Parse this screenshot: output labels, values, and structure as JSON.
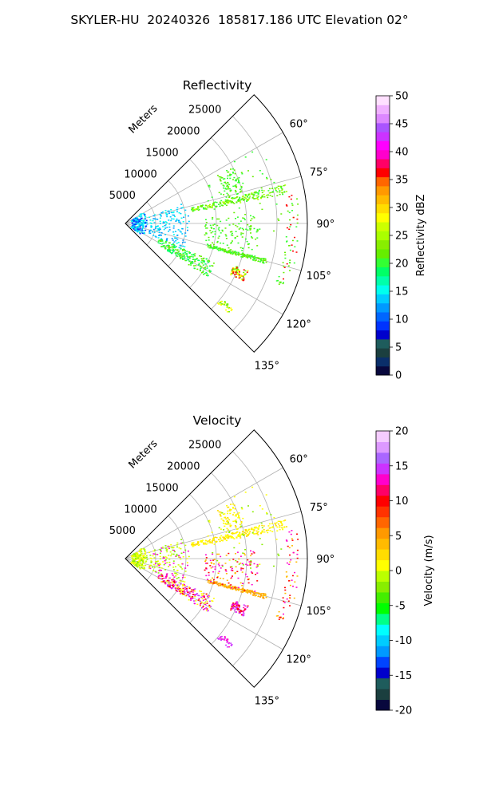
{
  "figure_title": "SKYLER-HU  20240326  185817.186 UTC Elevation 02°",
  "chart_data": [
    {
      "type": "polar-sector",
      "title": "Reflectivity",
      "r_label": "Meters",
      "r_ticks": [
        5000,
        10000,
        15000,
        20000,
        25000
      ],
      "r_lim": [
        0,
        30000
      ],
      "theta_range_deg": [
        45,
        135
      ],
      "theta_ticks": [
        "60°",
        "75°",
        "90°",
        "105°",
        "120°",
        "135°"
      ],
      "theta_tick_values": [
        60,
        75,
        90,
        105,
        120,
        135
      ],
      "grid": true,
      "colorbar": {
        "label": "Reflectivity dBZ",
        "min": 0,
        "max": 50,
        "ticks": [
          0,
          5,
          10,
          15,
          20,
          25,
          30,
          35,
          40,
          45,
          50
        ]
      }
    },
    {
      "type": "polar-sector",
      "title": "Velocity",
      "r_label": "Meters",
      "r_ticks": [
        5000,
        10000,
        15000,
        20000,
        25000
      ],
      "r_lim": [
        0,
        30000
      ],
      "theta_range_deg": [
        45,
        135
      ],
      "theta_ticks": [
        "60°",
        "75°",
        "90°",
        "105°",
        "120°",
        "135°"
      ],
      "theta_tick_values": [
        60,
        75,
        90,
        105,
        120,
        135
      ],
      "grid": true,
      "colorbar": {
        "label": "Velocity (m/s)",
        "min": -20,
        "max": 20,
        "ticks": [
          -20,
          -15,
          -10,
          -5,
          0,
          5,
          10,
          15,
          20
        ]
      }
    }
  ],
  "reflectivity_colors": [
    "#08083d",
    "#0a2f6a",
    "#1b3f3f",
    "#1e5c5c",
    "#0000cc",
    "#0033ff",
    "#0066ff",
    "#0099ff",
    "#00ccff",
    "#00ffee",
    "#00ffaa",
    "#00ff66",
    "#33ff33",
    "#66ee00",
    "#88ee00",
    "#aaff00",
    "#ccff00",
    "#ffff00",
    "#ffdd00",
    "#ffbb00",
    "#ff9900",
    "#ff6600",
    "#ff0000",
    "#ff0066",
    "#ff00cc",
    "#ff00ff",
    "#cc33ff",
    "#aa55ff",
    "#dd88ff",
    "#f0b0ff",
    "#ffe0ff"
  ],
  "velocity_colors": [
    "#08083d",
    "#1b3f3f",
    "#1e5c5c",
    "#0000cc",
    "#0044ff",
    "#0099ff",
    "#00ccff",
    "#00ffff",
    "#00ff88",
    "#00ff00",
    "#44ee00",
    "#88ee00",
    "#bbff00",
    "#ffff00",
    "#ffdd00",
    "#ffbb00",
    "#ff9900",
    "#ff6600",
    "#ff3300",
    "#ff0000",
    "#ff0066",
    "#ff00cc",
    "#cc33ff",
    "#aa66ff",
    "#dd99ff",
    "#f5ccff"
  ]
}
